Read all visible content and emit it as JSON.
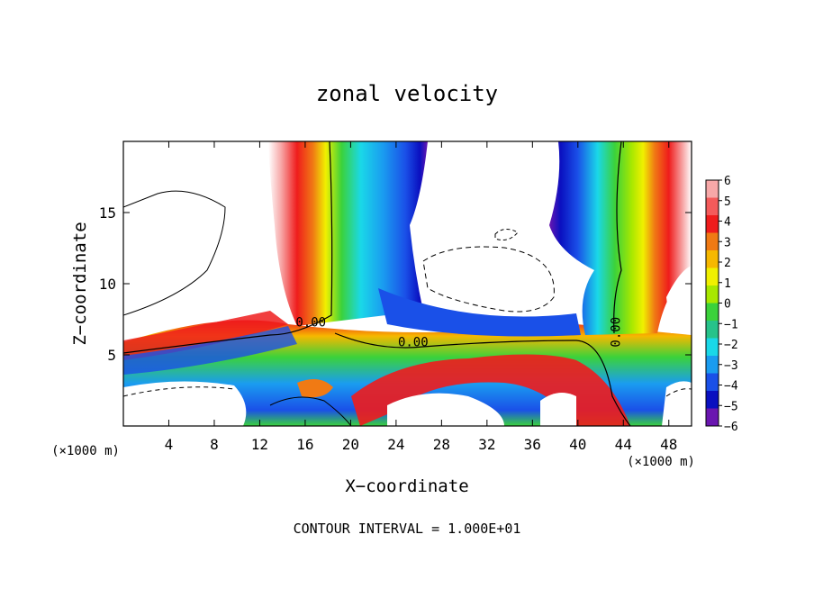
{
  "chart_data": {
    "type": "heatmap",
    "title": "zonal velocity",
    "xlabel": "X−coordinate",
    "ylabel": "Z−coordinate",
    "x_unit_left": "(×1000 m)",
    "x_unit_right": "(×1000 m)",
    "xlim": [
      0,
      50
    ],
    "ylim": [
      0,
      20
    ],
    "x_ticks": [
      4,
      8,
      12,
      16,
      20,
      24,
      28,
      32,
      36,
      40,
      44,
      48
    ],
    "y_ticks": [
      5,
      10,
      15
    ],
    "colorbar": {
      "levels": [
        6,
        5,
        4,
        3,
        2,
        1,
        0,
        -1,
        -2,
        -3,
        -4,
        -5,
        -6
      ],
      "labels": [
        "6",
        "5",
        "4",
        "3",
        "2",
        "1",
        "0",
        "−1",
        "−2",
        "−3",
        "−4",
        "−5",
        "−6"
      ],
      "colors": [
        "#f7a8a8",
        "#f45b5b",
        "#ef1c1c",
        "#f07a14",
        "#f6b800",
        "#f0f000",
        "#a8e800",
        "#3bd23b",
        "#27c38a",
        "#1ad8e8",
        "#1a9cf0",
        "#1a50e8",
        "#0a10c0",
        "#6a16b0"
      ]
    },
    "contour_labels": [
      {
        "text": "0.00",
        "x": 16.5,
        "y": 7.0
      },
      {
        "text": "0.00",
        "x": 25.5,
        "y": 5.6
      },
      {
        "text": "0.00",
        "x": 43.7,
        "y": 6.6
      }
    ],
    "footer": "CONTOUR INTERVAL = 1.000E+01"
  }
}
